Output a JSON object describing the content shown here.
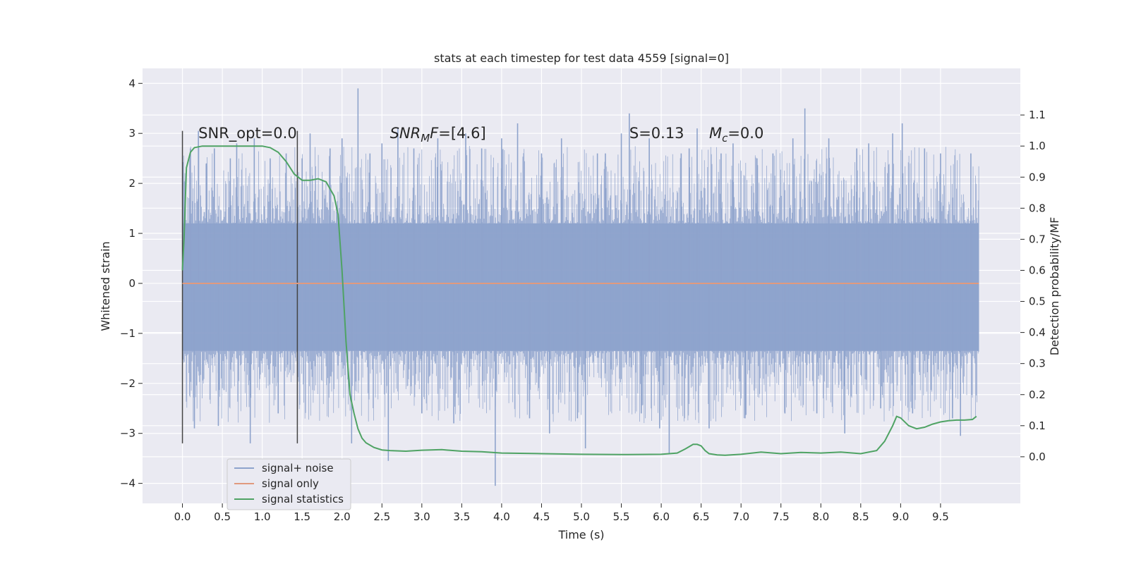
{
  "chart_data": {
    "type": "line",
    "title": "stats at each timestep for test data 4559 [signal=0]",
    "xlabel": "Time (s)",
    "ylabel": "Whitened strain",
    "y2label": "Detection probability/MF",
    "xlim": [
      -0.5,
      10.5
    ],
    "ylim": [
      -4.4,
      4.3
    ],
    "y2lim": [
      -0.15,
      1.25
    ],
    "x_ticks": [
      0.0,
      0.5,
      1.0,
      1.5,
      2.0,
      2.5,
      3.0,
      3.5,
      4.0,
      4.5,
      5.0,
      5.5,
      6.0,
      6.5,
      7.0,
      7.5,
      8.0,
      8.5,
      9.0,
      9.5
    ],
    "y_ticks": [
      -4,
      -3,
      -2,
      -1,
      0,
      1,
      2,
      3,
      4
    ],
    "y2_ticks": [
      0.0,
      0.1,
      0.2,
      0.3,
      0.4,
      0.5,
      0.6,
      0.7,
      0.8,
      0.9,
      1.0,
      1.1
    ],
    "grid": true,
    "legend_position": "lower-left",
    "annotations": [
      {
        "label": "SNR_opt=0.0",
        "value": "",
        "x": 0.2,
        "y": 3.0
      },
      {
        "label": "SNR",
        "sub": "M",
        "label_rest": "F",
        "value": "=[4.6]",
        "x": 2.6,
        "y": 3.0
      },
      {
        "label": "S",
        "value": "=0.13",
        "x": 5.6,
        "y": 3.0
      },
      {
        "label": "M",
        "sub": "c",
        "value": "=0.0",
        "x": 6.6,
        "y": 3.0
      }
    ],
    "vertical_lines": [
      0.0,
      1.44
    ],
    "vertical_line_range": [
      -3.2,
      3.05
    ],
    "noise": {
      "x_range": [
        0.0,
        9.98
      ],
      "core_low": -1.35,
      "core_high": 1.2,
      "spikes": [
        {
          "x": 0.1,
          "y": 2.7
        },
        {
          "x": 0.15,
          "y": -2.9
        },
        {
          "x": 0.2,
          "y": 3.05
        },
        {
          "x": 0.3,
          "y": 2.4
        },
        {
          "x": 0.4,
          "y": 2.7
        },
        {
          "x": 0.45,
          "y": -2.85
        },
        {
          "x": 0.6,
          "y": 2.5
        },
        {
          "x": 0.68,
          "y": 2.8
        },
        {
          "x": 0.85,
          "y": -3.2
        },
        {
          "x": 0.9,
          "y": 2.9
        },
        {
          "x": 1.1,
          "y": 2.5
        },
        {
          "x": 1.2,
          "y": -2.6
        },
        {
          "x": 1.3,
          "y": 2.6
        },
        {
          "x": 1.5,
          "y": 2.5
        },
        {
          "x": 1.6,
          "y": 3.0
        },
        {
          "x": 1.85,
          "y": 2.7
        },
        {
          "x": 2.0,
          "y": 2.9
        },
        {
          "x": 2.12,
          "y": -3.2
        },
        {
          "x": 2.2,
          "y": 3.9
        },
        {
          "x": 2.35,
          "y": 2.6
        },
        {
          "x": 2.5,
          "y": 2.8
        },
        {
          "x": 2.58,
          "y": -3.55
        },
        {
          "x": 2.7,
          "y": 3.1
        },
        {
          "x": 2.9,
          "y": 2.7
        },
        {
          "x": 3.0,
          "y": -2.6
        },
        {
          "x": 3.2,
          "y": 2.9
        },
        {
          "x": 3.4,
          "y": -2.8
        },
        {
          "x": 3.55,
          "y": 3.0
        },
        {
          "x": 3.75,
          "y": 2.7
        },
        {
          "x": 3.92,
          "y": -4.05
        },
        {
          "x": 4.0,
          "y": 2.9
        },
        {
          "x": 4.2,
          "y": 3.2
        },
        {
          "x": 4.35,
          "y": -2.7
        },
        {
          "x": 4.5,
          "y": 2.6
        },
        {
          "x": 4.6,
          "y": -3.0
        },
        {
          "x": 4.75,
          "y": 2.9
        },
        {
          "x": 4.95,
          "y": -2.7
        },
        {
          "x": 5.05,
          "y": -3.3
        },
        {
          "x": 5.2,
          "y": 2.6
        },
        {
          "x": 5.3,
          "y": 2.6
        },
        {
          "x": 5.5,
          "y": 3.0
        },
        {
          "x": 5.6,
          "y": 3.4
        },
        {
          "x": 5.75,
          "y": -2.6
        },
        {
          "x": 5.85,
          "y": 2.9
        },
        {
          "x": 5.98,
          "y": -2.9
        },
        {
          "x": 6.1,
          "y": -3.4
        },
        {
          "x": 6.25,
          "y": 2.6
        },
        {
          "x": 6.35,
          "y": 2.7
        },
        {
          "x": 6.45,
          "y": 3.1
        },
        {
          "x": 6.6,
          "y": -2.9
        },
        {
          "x": 6.75,
          "y": 2.6
        },
        {
          "x": 6.9,
          "y": 2.8
        },
        {
          "x": 7.05,
          "y": -2.7
        },
        {
          "x": 7.2,
          "y": 2.5
        },
        {
          "x": 7.4,
          "y": 2.6
        },
        {
          "x": 7.55,
          "y": -2.6
        },
        {
          "x": 7.65,
          "y": 2.9
        },
        {
          "x": 7.8,
          "y": 3.5
        },
        {
          "x": 7.95,
          "y": -2.6
        },
        {
          "x": 8.1,
          "y": 2.9
        },
        {
          "x": 8.3,
          "y": -3.0
        },
        {
          "x": 8.45,
          "y": 2.7
        },
        {
          "x": 8.6,
          "y": 2.8
        },
        {
          "x": 8.75,
          "y": -2.5
        },
        {
          "x": 8.9,
          "y": 3.0
        },
        {
          "x": 9.02,
          "y": 3.2
        },
        {
          "x": 9.15,
          "y": -2.6
        },
        {
          "x": 9.3,
          "y": 2.7
        },
        {
          "x": 9.5,
          "y": 2.6
        },
        {
          "x": 9.65,
          "y": -2.7
        },
        {
          "x": 9.75,
          "y": -3.05
        },
        {
          "x": 9.88,
          "y": 2.6
        }
      ]
    },
    "series": [
      {
        "name": "signal+ noise",
        "color": "#8ea3cc",
        "axis": "left"
      },
      {
        "name": "signal only",
        "color": "#e09a7e",
        "axis": "left",
        "x": [
          0.0,
          9.98
        ],
        "y": [
          0.0,
          0.0
        ]
      },
      {
        "name": "signal statistics",
        "color": "#4fa364",
        "axis": "right",
        "x": [
          0.0,
          0.02,
          0.05,
          0.1,
          0.15,
          0.25,
          0.4,
          0.6,
          0.8,
          1.0,
          1.1,
          1.2,
          1.3,
          1.4,
          1.5,
          1.6,
          1.7,
          1.8,
          1.9,
          1.95,
          2.0,
          2.05,
          2.1,
          2.15,
          2.2,
          2.25,
          2.3,
          2.4,
          2.5,
          2.6,
          2.8,
          3.0,
          3.25,
          3.5,
          3.75,
          4.0,
          4.5,
          5.0,
          5.5,
          6.0,
          6.2,
          6.3,
          6.4,
          6.45,
          6.5,
          6.55,
          6.6,
          6.7,
          6.8,
          7.0,
          7.25,
          7.5,
          7.75,
          8.0,
          8.25,
          8.5,
          8.7,
          8.8,
          8.9,
          8.95,
          9.0,
          9.1,
          9.2,
          9.3,
          9.4,
          9.5,
          9.6,
          9.7,
          9.8,
          9.9,
          9.95
        ],
        "y": [
          0.6,
          0.7,
          0.93,
          0.98,
          0.995,
          1.0,
          1.0,
          1.0,
          1.0,
          1.0,
          0.995,
          0.98,
          0.95,
          0.91,
          0.89,
          0.89,
          0.895,
          0.885,
          0.84,
          0.78,
          0.6,
          0.37,
          0.2,
          0.14,
          0.09,
          0.06,
          0.045,
          0.03,
          0.022,
          0.02,
          0.018,
          0.021,
          0.023,
          0.018,
          0.016,
          0.012,
          0.01,
          0.008,
          0.007,
          0.008,
          0.012,
          0.025,
          0.04,
          0.04,
          0.035,
          0.02,
          0.01,
          0.006,
          0.005,
          0.008,
          0.015,
          0.01,
          0.014,
          0.012,
          0.015,
          0.01,
          0.02,
          0.05,
          0.1,
          0.13,
          0.125,
          0.1,
          0.09,
          0.095,
          0.105,
          0.112,
          0.116,
          0.118,
          0.118,
          0.12,
          0.13
        ]
      }
    ]
  }
}
